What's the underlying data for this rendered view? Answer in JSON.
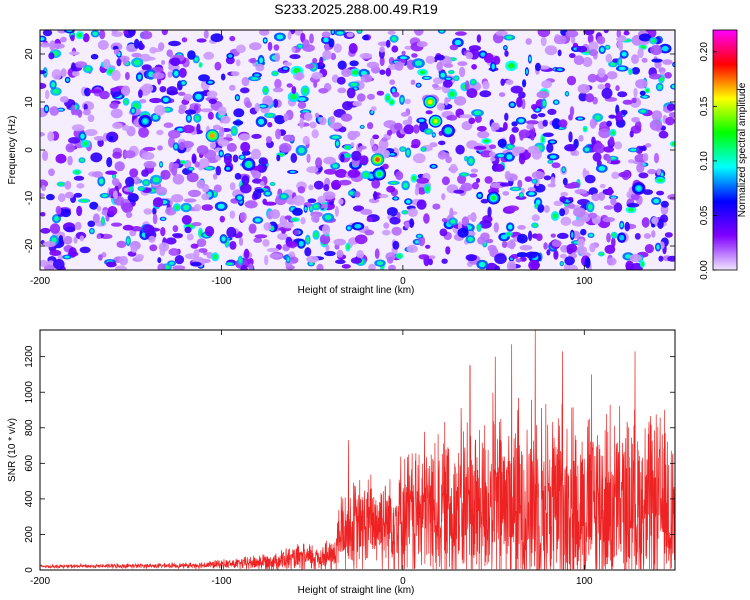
{
  "title": "S233.2025.288.00.49.R19",
  "chart_data": [
    {
      "type": "heatmap",
      "xlabel": "Height of straight line (km)",
      "ylabel": "Frequency (Hz)",
      "xlim": [
        -200,
        150
      ],
      "ylim": [
        -25,
        25
      ],
      "xticks": [
        -200,
        -100,
        0,
        100
      ],
      "yticks": [
        -20,
        -10,
        0,
        10,
        20
      ],
      "colorbar": {
        "label": "Normalized spectral amplitude",
        "range": [
          0.0,
          0.22
        ],
        "ticks": [
          "0.00",
          "0.05",
          "0.10",
          "0.15",
          "0.20"
        ],
        "colors": [
          "#f0e6ff",
          "#8000ff",
          "#0000ff",
          "#00ffff",
          "#00ff00",
          "#ffff00",
          "#ff0000",
          "#ff00ff"
        ]
      },
      "hotspots": [
        {
          "x": -105,
          "y": 3,
          "value": 0.17
        },
        {
          "x": -14,
          "y": -2,
          "value": 0.18
        },
        {
          "x": -13,
          "y": -5,
          "value": 0.12
        },
        {
          "x": 15,
          "y": 10,
          "value": 0.16
        },
        {
          "x": 18,
          "y": 6,
          "value": 0.15
        },
        {
          "x": 50,
          "y": -10,
          "value": 0.12
        },
        {
          "x": -85,
          "y": -3,
          "value": 0.11
        },
        {
          "x": -142,
          "y": 6,
          "value": 0.1
        },
        {
          "x": 130,
          "y": -8,
          "value": 0.1
        },
        {
          "x": 25,
          "y": 4,
          "value": 0.11
        }
      ]
    },
    {
      "type": "line",
      "xlabel": "Height of straight line (km)",
      "ylabel": "SNR (10 * v/v)",
      "xlim": [
        -200,
        150
      ],
      "ylim": [
        0,
        1350
      ],
      "xticks": [
        -200,
        -100,
        0,
        100
      ],
      "yticks": [
        0,
        200,
        400,
        600,
        800,
        1000,
        1200
      ],
      "color": "#ee2222",
      "envelope": [
        {
          "x": -200,
          "base": 20,
          "spread": 12
        },
        {
          "x": -120,
          "base": 25,
          "spread": 18
        },
        {
          "x": -90,
          "base": 35,
          "spread": 40
        },
        {
          "x": -60,
          "base": 60,
          "spread": 90
        },
        {
          "x": -38,
          "base": 80,
          "spread": 120
        },
        {
          "x": -34,
          "base": 220,
          "spread": 300
        },
        {
          "x": -10,
          "base": 280,
          "spread": 350
        },
        {
          "x": 10,
          "base": 330,
          "spread": 500
        },
        {
          "x": 40,
          "base": 360,
          "spread": 650
        },
        {
          "x": 75,
          "base": 380,
          "spread": 700
        },
        {
          "x": 110,
          "base": 360,
          "spread": 650
        },
        {
          "x": 150,
          "base": 340,
          "spread": 620
        }
      ],
      "peaks": [
        {
          "x": -30,
          "y": 730
        },
        {
          "x": 37,
          "y": 1150
        },
        {
          "x": 51,
          "y": 1200
        },
        {
          "x": 60,
          "y": 1270
        },
        {
          "x": 73,
          "y": 1350
        },
        {
          "x": 88,
          "y": 1230
        },
        {
          "x": 104,
          "y": 1100
        },
        {
          "x": 128,
          "y": 1230
        }
      ]
    }
  ]
}
